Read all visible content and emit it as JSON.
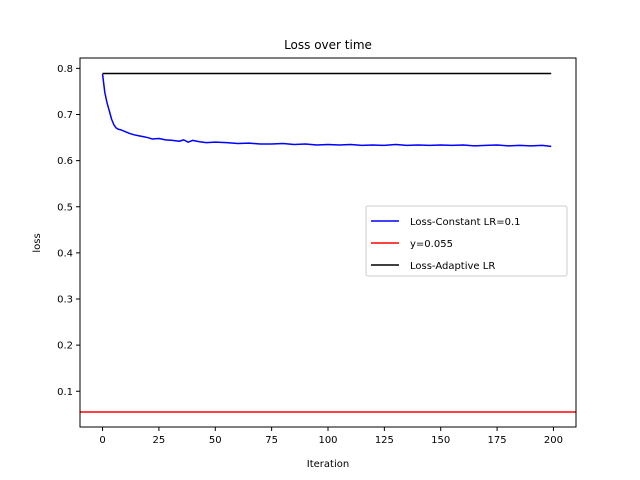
{
  "chart_data": {
    "type": "line",
    "title": "Loss over time",
    "xlabel": "Iteration",
    "ylabel": "loss",
    "xlim": [
      -10,
      210
    ],
    "ylim": [
      0.0225,
      0.8225
    ],
    "xticks": [
      0,
      25,
      50,
      75,
      100,
      125,
      150,
      175,
      200
    ],
    "yticks": [
      0.1,
      0.2,
      0.3,
      0.4,
      0.5,
      0.6,
      0.7,
      0.8
    ],
    "xtick_labels": [
      "0",
      "25",
      "50",
      "75",
      "100",
      "125",
      "150",
      "175",
      "200"
    ],
    "ytick_labels": [
      "0.1",
      "0.2",
      "0.3",
      "0.4",
      "0.5",
      "0.6",
      "0.7",
      "0.8"
    ],
    "grid": false,
    "legend_position": "center-right",
    "series": [
      {
        "name": "Loss-Constant LR=0.1",
        "color": "#0000ff",
        "x": [
          0,
          1,
          2,
          3,
          4,
          5,
          6,
          7,
          8,
          10,
          12,
          14,
          16,
          18,
          20,
          22,
          25,
          28,
          31,
          34,
          36,
          38,
          40,
          43,
          46,
          50,
          55,
          60,
          65,
          70,
          75,
          80,
          85,
          90,
          95,
          100,
          105,
          110,
          115,
          120,
          125,
          130,
          135,
          140,
          145,
          150,
          155,
          160,
          165,
          170,
          175,
          180,
          185,
          190,
          195,
          199
        ],
        "y": [
          0.788,
          0.748,
          0.725,
          0.708,
          0.69,
          0.678,
          0.671,
          0.668,
          0.667,
          0.663,
          0.659,
          0.656,
          0.654,
          0.652,
          0.65,
          0.647,
          0.648,
          0.645,
          0.644,
          0.642,
          0.645,
          0.64,
          0.644,
          0.641,
          0.639,
          0.64,
          0.639,
          0.637,
          0.638,
          0.636,
          0.636,
          0.637,
          0.635,
          0.636,
          0.634,
          0.635,
          0.634,
          0.635,
          0.633,
          0.634,
          0.633,
          0.635,
          0.633,
          0.634,
          0.633,
          0.634,
          0.633,
          0.634,
          0.632,
          0.633,
          0.634,
          0.632,
          0.633,
          0.632,
          0.633,
          0.631
        ]
      },
      {
        "name": "y=0.055",
        "color": "#ff0000",
        "hline": 0.055
      },
      {
        "name": "Loss-Adaptive LR",
        "color": "#000000",
        "x": [
          0,
          199
        ],
        "y": [
          0.789,
          0.789
        ]
      }
    ]
  }
}
